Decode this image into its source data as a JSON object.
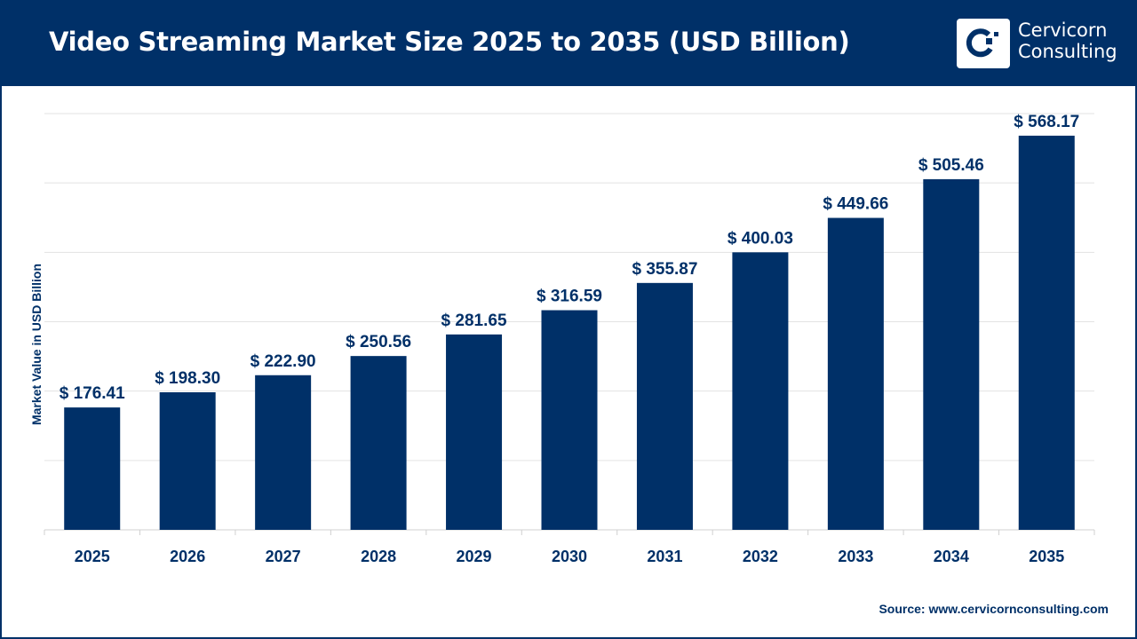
{
  "header": {
    "title": "Video Streaming Market Size 2025 to 2035 (USD Billion)",
    "logo_text": [
      "Cervicorn",
      "Consulting"
    ]
  },
  "source": "Source: www.cervicornconsulting.com",
  "colors": {
    "brand": "#003068",
    "bar": "#003068",
    "grid": "#e3e3e3"
  },
  "chart_data": {
    "type": "bar",
    "title": "Video Streaming Market Size 2025 to 2035 (USD Billion)",
    "xlabel": "",
    "ylabel": "Market Value in USD Billion",
    "categories": [
      "2025",
      "2026",
      "2027",
      "2028",
      "2029",
      "2030",
      "2031",
      "2032",
      "2033",
      "2034",
      "2035"
    ],
    "values": [
      176.41,
      198.3,
      222.9,
      250.56,
      281.65,
      316.59,
      355.87,
      400.03,
      449.66,
      505.46,
      568.17
    ],
    "data_labels": [
      "$ 176.41",
      "$ 198.30",
      "$ 222.90",
      "$ 250.56",
      "$ 281.65",
      "$ 316.59",
      "$ 355.87",
      "$ 400.03",
      "$ 449.66",
      "$ 505.46",
      "$ 568.17"
    ],
    "ylim": [
      0,
      600
    ],
    "grid": true,
    "grid_step": 100,
    "legend": "none"
  }
}
